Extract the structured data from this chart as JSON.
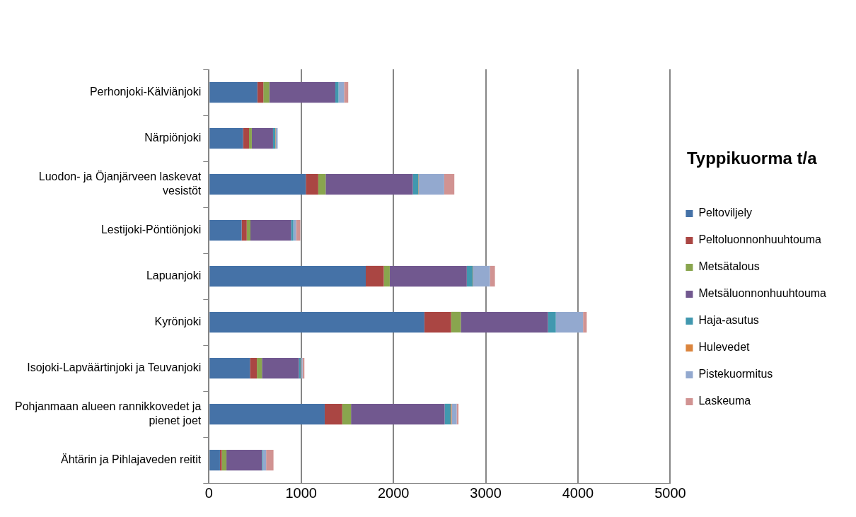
{
  "chart_data": {
    "type": "bar",
    "orientation": "horizontal",
    "stacked": true,
    "legend_title": "Typpikuorma t/a",
    "legend": "right",
    "grid": "x",
    "categories": [
      "Perhonjoki-Kälviänjoki",
      "Närpiönjoki",
      "Luodon- ja Öjanjärveen laskevat vesistöt",
      "Lestijoki-Pöntiönjoki",
      "Lapuanjoki",
      "Kyrönjoki",
      "Isojoki-Lapväärtinjoki ja Teuvanjoki",
      "Pohjanmaan alueen rannikkovedet ja pienet joet",
      "Ähtärin ja Pihlajaveden reitit"
    ],
    "xlim": [
      0,
      5000
    ],
    "xticks": [
      0,
      1000,
      2000,
      3000,
      4000,
      5000
    ],
    "series": [
      {
        "name": "Peltoviljely",
        "color": "#4572a7",
        "values": [
          525,
          370,
          1050,
          355,
          1700,
          2335,
          445,
          1255,
          120
        ]
      },
      {
        "name": "Peltoluonnonhuuhtouma",
        "color": "#aa4643",
        "values": [
          65,
          65,
          135,
          55,
          195,
          290,
          75,
          190,
          20
        ]
      },
      {
        "name": "Metsätalous",
        "color": "#89a54e",
        "values": [
          65,
          30,
          80,
          40,
          65,
          105,
          55,
          95,
          50
        ]
      },
      {
        "name": "Metsäluonnonhuuhtouma",
        "color": "#71588f",
        "values": [
          715,
          230,
          945,
          440,
          835,
          945,
          400,
          1015,
          385
        ]
      },
      {
        "name": "Haja-asutus",
        "color": "#4198af",
        "values": [
          35,
          25,
          60,
          25,
          65,
          85,
          20,
          65,
          10
        ]
      },
      {
        "name": "Hulevedet",
        "color": "#db843d",
        "values": [
          null,
          5,
          5,
          null,
          5,
          null,
          5,
          10,
          0
        ]
      },
      {
        "name": "Pistekuormitus",
        "color": "#93a9cf",
        "values": [
          60,
          20,
          275,
          30,
          180,
          295,
          15,
          55,
          35
        ]
      },
      {
        "name": "Laskeuma",
        "color": "#d19392",
        "values": [
          45,
          null,
          110,
          45,
          55,
          40,
          20,
          20,
          80
        ]
      }
    ]
  }
}
